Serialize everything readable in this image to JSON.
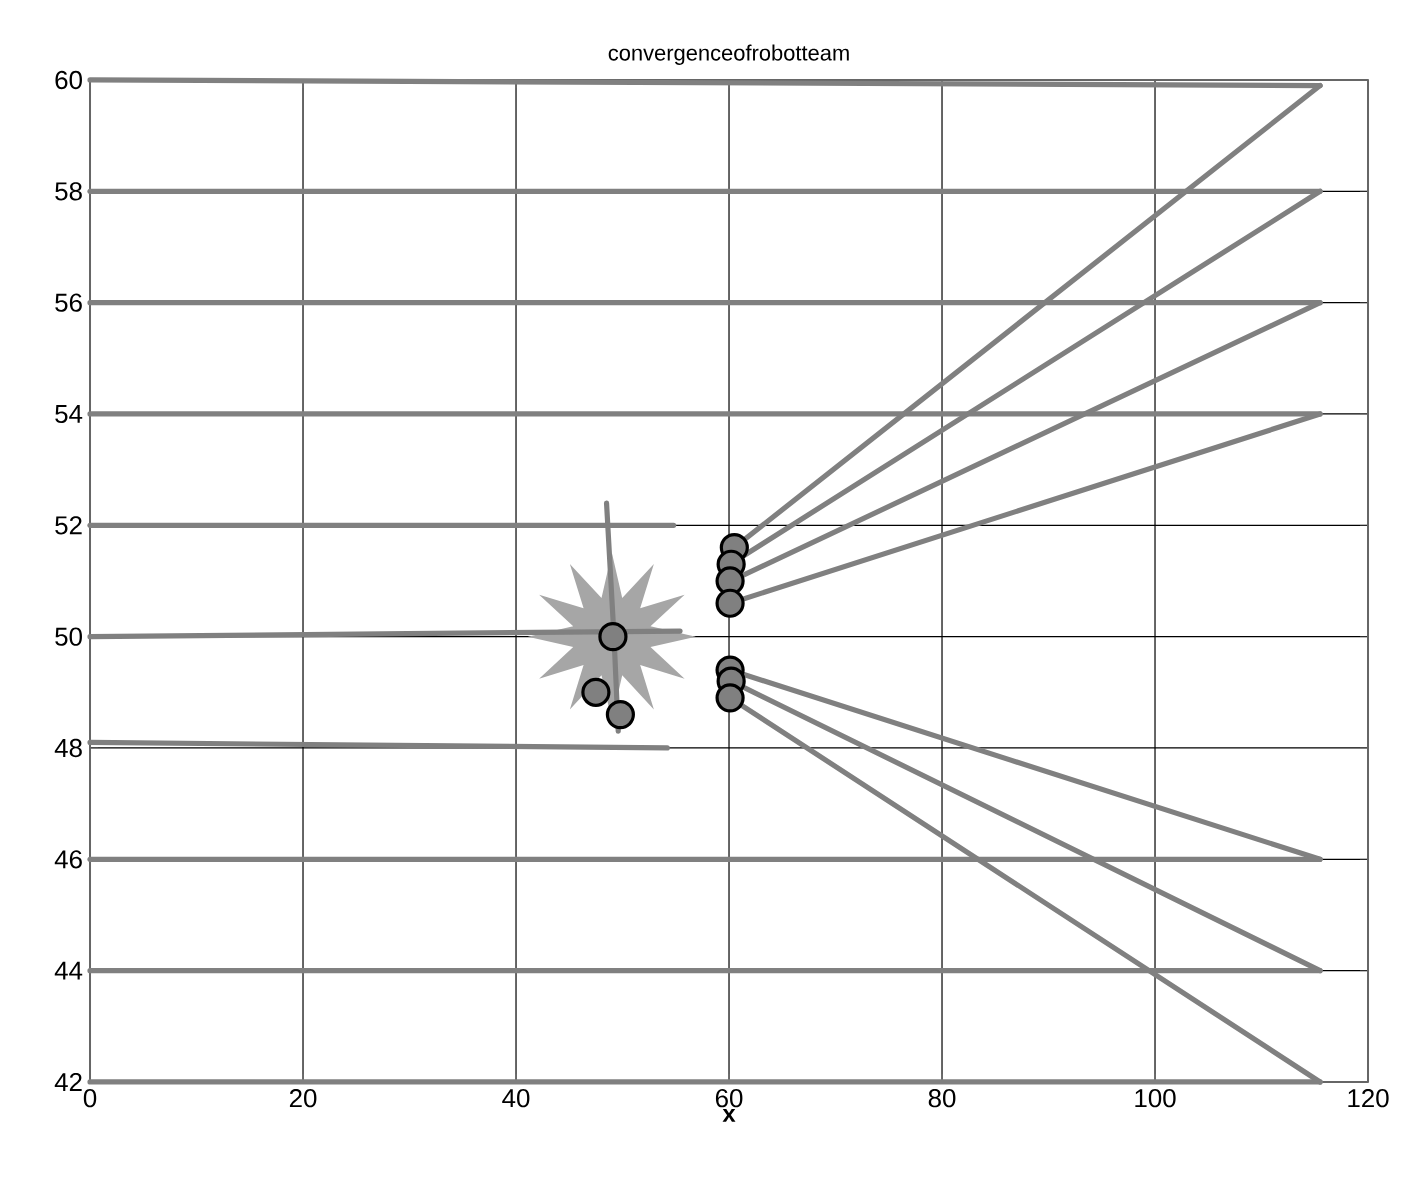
{
  "chart_data": {
    "type": "line",
    "title": "convergenceofrobotteam",
    "xlabel": "x",
    "xlim": [
      0,
      120
    ],
    "ylim": [
      42,
      60
    ],
    "xticks": [
      0,
      20,
      40,
      60,
      80,
      100,
      120
    ],
    "yticks": [
      42,
      44,
      46,
      48,
      50,
      52,
      54,
      56,
      58,
      60
    ],
    "grid": true,
    "line_style": "solid",
    "series": [
      {
        "color": "#808080",
        "x": [
          0,
          115.5
        ],
        "values": [
          60,
          59.9
        ]
      },
      {
        "color": "#808080",
        "x": [
          115.5,
          60.5
        ],
        "values": [
          59.9,
          51.6
        ]
      },
      {
        "color": "#808080",
        "x": [
          0,
          115.5
        ],
        "values": [
          58,
          58
        ]
      },
      {
        "color": "#808080",
        "x": [
          115.5,
          60.1
        ],
        "values": [
          58,
          51.3
        ]
      },
      {
        "color": "#808080",
        "x": [
          0,
          115.5
        ],
        "values": [
          56,
          56
        ]
      },
      {
        "color": "#808080",
        "x": [
          115.5,
          60.2
        ],
        "values": [
          56,
          51.0
        ]
      },
      {
        "color": "#808080",
        "x": [
          0,
          115.5
        ],
        "values": [
          54,
          54
        ]
      },
      {
        "color": "#808080",
        "x": [
          115.5,
          60.1
        ],
        "values": [
          54,
          50.6
        ]
      },
      {
        "color": "#808080",
        "x": [
          0,
          54.8
        ],
        "values": [
          52,
          52
        ]
      },
      {
        "color": "#808080",
        "x": [
          0,
          55.4
        ],
        "values": [
          50,
          50.1
        ]
      },
      {
        "color": "#808080",
        "x": [
          0,
          54.2
        ],
        "values": [
          48.1,
          48
        ]
      },
      {
        "color": "#808080",
        "x": [
          48.5,
          49.2,
          49.6
        ],
        "values": [
          52.4,
          50,
          48.3
        ]
      },
      {
        "color": "#808080",
        "x": [
          0,
          115.5
        ],
        "values": [
          46,
          46
        ]
      },
      {
        "color": "#808080",
        "x": [
          115.5,
          60.1
        ],
        "values": [
          46,
          49.4
        ]
      },
      {
        "color": "#808080",
        "x": [
          0,
          115.5
        ],
        "values": [
          44,
          44
        ]
      },
      {
        "color": "#808080",
        "x": [
          115.5,
          60.2
        ],
        "values": [
          44,
          49.2
        ]
      },
      {
        "color": "#808080",
        "x": [
          0,
          115.5
        ],
        "values": [
          42,
          42
        ]
      },
      {
        "color": "#808080",
        "x": [
          115.5,
          60.1
        ],
        "values": [
          42,
          48.9
        ]
      },
      {
        "type": "scatter",
        "marker": "circle",
        "color": "#808080",
        "x": [
          49.1,
          47.5,
          49.8,
          60.5,
          60.2,
          60.1,
          60.1,
          60.1,
          60.2,
          60.1
        ],
        "values": [
          50,
          49,
          48.6,
          51.6,
          51.3,
          51.0,
          50.6,
          49.4,
          49.2,
          48.9
        ]
      }
    ]
  }
}
